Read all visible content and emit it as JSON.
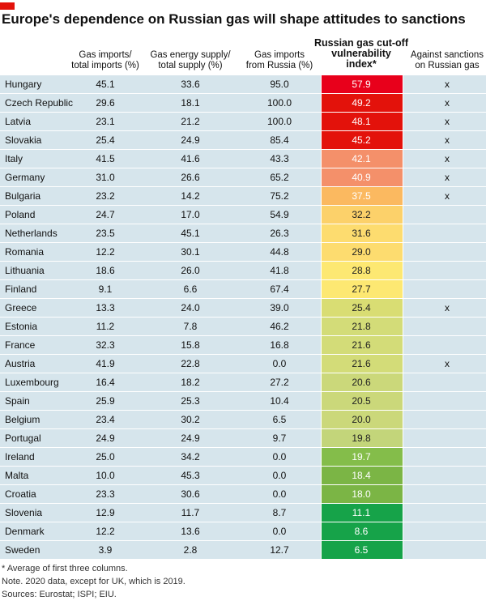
{
  "title": "Europe's dependence on Russian gas will shape attitudes to sanctions",
  "table": {
    "columns": [
      [
        "Gas imports/",
        "total imports (%)"
      ],
      [
        "Gas energy supply/",
        "total supply (%)"
      ],
      [
        "Gas imports",
        "from Russia (%)"
      ],
      [
        "Russian gas cut-off",
        "vulnerability",
        "index*"
      ],
      [
        "Against sanctions",
        "on Russian gas"
      ]
    ],
    "rows": [
      [
        "Hungary",
        "45.1",
        "33.6",
        "95.0",
        "57.9",
        "x"
      ],
      [
        "Czech Republic",
        "29.6",
        "18.1",
        "100.0",
        "49.2",
        "x"
      ],
      [
        "Latvia",
        "23.1",
        "21.2",
        "100.0",
        "48.1",
        "x"
      ],
      [
        "Slovakia",
        "25.4",
        "24.9",
        "85.4",
        "45.2",
        "x"
      ],
      [
        "Italy",
        "41.5",
        "41.6",
        "43.3",
        "42.1",
        "x"
      ],
      [
        "Germany",
        "31.0",
        "26.6",
        "65.2",
        "40.9",
        "x"
      ],
      [
        "Bulgaria",
        "23.2",
        "14.2",
        "75.2",
        "37.5",
        "x"
      ],
      [
        "Poland",
        "24.7",
        "17.0",
        "54.9",
        "32.2",
        ""
      ],
      [
        "Netherlands",
        "23.5",
        "45.1",
        "26.3",
        "31.6",
        ""
      ],
      [
        "Romania",
        "12.2",
        "30.1",
        "44.8",
        "29.0",
        ""
      ],
      [
        "Lithuania",
        "18.6",
        "26.0",
        "41.8",
        "28.8",
        ""
      ],
      [
        "Finland",
        "9.1",
        "6.6",
        "67.4",
        "27.7",
        ""
      ],
      [
        "Greece",
        "13.3",
        "24.0",
        "39.0",
        "25.4",
        "x"
      ],
      [
        "Estonia",
        "11.2",
        "7.8",
        "46.2",
        "21.8",
        ""
      ],
      [
        "France",
        "32.3",
        "15.8",
        "16.8",
        "21.6",
        ""
      ],
      [
        "Austria",
        "41.9",
        "22.8",
        "0.0",
        "21.6",
        "x"
      ],
      [
        "Luxembourg",
        "16.4",
        "18.2",
        "27.2",
        "20.6",
        ""
      ],
      [
        "Spain",
        "25.9",
        "25.3",
        "10.4",
        "20.5",
        ""
      ],
      [
        "Belgium",
        "23.4",
        "30.2",
        "6.5",
        "20.0",
        ""
      ],
      [
        "Portugal",
        "24.9",
        "24.9",
        "9.7",
        "19.8",
        ""
      ],
      [
        "Ireland",
        "25.0",
        "34.2",
        "0.0",
        "19.7",
        ""
      ],
      [
        "Malta",
        "10.0",
        "45.3",
        "0.0",
        "18.4",
        ""
      ],
      [
        "Croatia",
        "23.3",
        "30.6",
        "0.0",
        "18.0",
        ""
      ],
      [
        "Slovenia",
        "12.9",
        "11.7",
        "8.7",
        "11.1",
        ""
      ],
      [
        "Denmark",
        "12.2",
        "13.6",
        "0.0",
        "8.6",
        ""
      ],
      [
        "Sweden",
        "3.9",
        "2.8",
        "12.7",
        "6.5",
        ""
      ]
    ],
    "index_colors": [
      "#e8001b",
      "#e3120b",
      "#e3120b",
      "#e3120b",
      "#f4906a",
      "#f4906a",
      "#fbb960",
      "#fcd16a",
      "#fddc6f",
      "#fddc6f",
      "#fde872",
      "#fde872",
      "#d9dd73",
      "#d3dc78",
      "#d3dc78",
      "#d3dc78",
      "#cbd87a",
      "#cbd87a",
      "#cbd87a",
      "#c3d57a",
      "#84bd4a",
      "#7bb545",
      "#7bb545",
      "#16a349",
      "#16a349",
      "#16a349"
    ]
  },
  "notes": [
    "* Average of first three columns.",
    "Note. 2020 data, except for UK, which is 2019.",
    "Sources: Eurostat; ISPI; EIU."
  ]
}
